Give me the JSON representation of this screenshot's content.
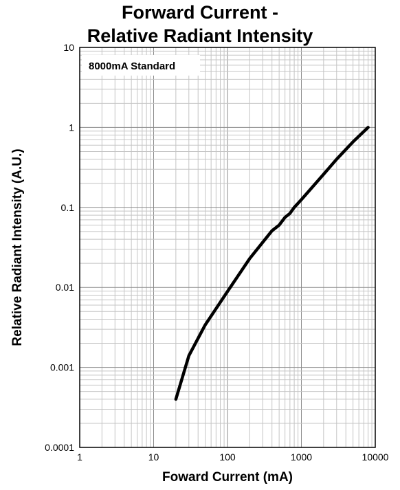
{
  "chart_data": {
    "type": "line",
    "title_line1": "Forward Current -",
    "title_line2": "Relative Radiant Intensity",
    "xlabel": "Foward Current (mA)",
    "ylabel": "Relative Radiant Intensity (A.U.)",
    "xscale": "log",
    "yscale": "log",
    "xlim": [
      1,
      10000
    ],
    "ylim": [
      0.0001,
      10
    ],
    "grid": true,
    "x_tick_labels": [
      "1",
      "10",
      "100",
      "1000",
      "10000"
    ],
    "y_tick_labels": [
      "10",
      "1",
      "0.1",
      "0.01",
      "0.001",
      "0.0001"
    ],
    "x_ticks": [
      1,
      10,
      100,
      1000,
      10000
    ],
    "y_ticks": [
      10,
      1,
      0.1,
      0.01,
      0.001,
      0.0001
    ],
    "annotation": "8000mA Standard",
    "series": [
      {
        "color": "#000000",
        "x": [
          20,
          30,
          50,
          100,
          200,
          400,
          500,
          600,
          700,
          800,
          1000,
          2000,
          3000,
          5000,
          8000
        ],
        "y": [
          0.0004,
          0.0014,
          0.0034,
          0.0089,
          0.023,
          0.051,
          0.06,
          0.075,
          0.084,
          0.1,
          0.125,
          0.26,
          0.4,
          0.66,
          1.0
        ]
      }
    ]
  }
}
